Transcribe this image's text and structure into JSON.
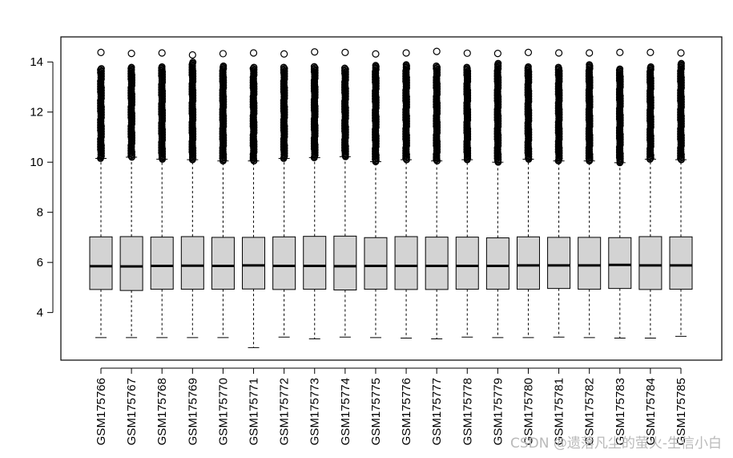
{
  "chart_data": {
    "type": "box",
    "categories": [
      "GSM175766",
      "GSM175767",
      "GSM175768",
      "GSM175769",
      "GSM175770",
      "GSM175771",
      "GSM175772",
      "GSM175773",
      "GSM175774",
      "GSM175775",
      "GSM175776",
      "GSM175777",
      "GSM175778",
      "GSM175779",
      "GSM175780",
      "GSM175781",
      "GSM175782",
      "GSM175783",
      "GSM175784",
      "GSM175785"
    ],
    "ylim": [
      2.1,
      15.0
    ],
    "yticks": [
      4,
      6,
      8,
      10,
      12,
      14
    ],
    "box_fill": "#d3d3d3",
    "boxes": [
      {
        "min": 3.0,
        "q1": 4.92,
        "median": 5.85,
        "q3": 7.02,
        "max": 10.15,
        "outlier_band": [
          10.15,
          13.75
        ],
        "top_outlier": 14.38
      },
      {
        "min": 3.0,
        "q1": 4.88,
        "median": 5.84,
        "q3": 7.03,
        "max": 10.2,
        "outlier_band": [
          10.2,
          13.8
        ],
        "top_outlier": 14.34
      },
      {
        "min": 3.0,
        "q1": 4.93,
        "median": 5.86,
        "q3": 7.01,
        "max": 10.12,
        "outlier_band": [
          10.12,
          13.82
        ],
        "top_outlier": 14.36
      },
      {
        "min": 3.0,
        "q1": 4.93,
        "median": 5.87,
        "q3": 7.03,
        "max": 10.1,
        "outlier_band": [
          10.1,
          14.0
        ],
        "top_outlier": 14.28
      },
      {
        "min": 3.0,
        "q1": 4.93,
        "median": 5.86,
        "q3": 7.0,
        "max": 10.05,
        "outlier_band": [
          10.05,
          13.85
        ],
        "top_outlier": 14.33
      },
      {
        "min": 2.6,
        "q1": 4.94,
        "median": 5.88,
        "q3": 7.0,
        "max": 10.05,
        "outlier_band": [
          10.05,
          13.8
        ],
        "top_outlier": 14.36
      },
      {
        "min": 3.02,
        "q1": 4.92,
        "median": 5.86,
        "q3": 7.02,
        "max": 10.15,
        "outlier_band": [
          10.15,
          13.82
        ],
        "top_outlier": 14.32
      },
      {
        "min": 2.95,
        "q1": 4.93,
        "median": 5.86,
        "q3": 7.04,
        "max": 10.18,
        "outlier_band": [
          10.18,
          13.85
        ],
        "top_outlier": 14.4
      },
      {
        "min": 3.02,
        "q1": 4.9,
        "median": 5.85,
        "q3": 7.05,
        "max": 10.22,
        "outlier_band": [
          10.22,
          13.8
        ],
        "top_outlier": 14.38
      },
      {
        "min": 3.0,
        "q1": 4.93,
        "median": 5.86,
        "q3": 6.99,
        "max": 10.02,
        "outlier_band": [
          10.02,
          13.9
        ],
        "top_outlier": 14.32
      },
      {
        "min": 2.98,
        "q1": 4.92,
        "median": 5.86,
        "q3": 7.03,
        "max": 10.1,
        "outlier_band": [
          10.1,
          13.9
        ],
        "top_outlier": 14.36
      },
      {
        "min": 2.95,
        "q1": 4.92,
        "median": 5.86,
        "q3": 7.01,
        "max": 10.05,
        "outlier_band": [
          10.05,
          13.85
        ],
        "top_outlier": 14.42
      },
      {
        "min": 3.02,
        "q1": 4.93,
        "median": 5.86,
        "q3": 7.01,
        "max": 10.1,
        "outlier_band": [
          10.1,
          13.82
        ],
        "top_outlier": 14.35
      },
      {
        "min": 3.0,
        "q1": 4.93,
        "median": 5.86,
        "q3": 6.98,
        "max": 10.0,
        "outlier_band": [
          10.0,
          13.95
        ],
        "top_outlier": 14.34
      },
      {
        "min": 3.0,
        "q1": 4.93,
        "median": 5.88,
        "q3": 7.02,
        "max": 10.12,
        "outlier_band": [
          10.12,
          13.85
        ],
        "top_outlier": 14.38
      },
      {
        "min": 3.02,
        "q1": 4.96,
        "median": 5.88,
        "q3": 7.0,
        "max": 10.05,
        "outlier_band": [
          10.05,
          13.8
        ],
        "top_outlier": 14.36
      },
      {
        "min": 3.0,
        "q1": 4.93,
        "median": 5.88,
        "q3": 7.0,
        "max": 10.05,
        "outlier_band": [
          10.05,
          13.9
        ],
        "top_outlier": 14.36
      },
      {
        "min": 2.98,
        "q1": 4.96,
        "median": 5.9,
        "q3": 6.99,
        "max": 9.98,
        "outlier_band": [
          9.98,
          13.75
        ],
        "top_outlier": 14.38
      },
      {
        "min": 2.98,
        "q1": 4.92,
        "median": 5.88,
        "q3": 7.03,
        "max": 10.12,
        "outlier_band": [
          10.12,
          13.85
        ],
        "top_outlier": 14.38
      },
      {
        "min": 3.05,
        "q1": 4.93,
        "median": 5.88,
        "q3": 7.02,
        "max": 10.1,
        "outlier_band": [
          10.1,
          13.95
        ],
        "top_outlier": 14.36
      }
    ]
  },
  "watermark": "CSDN @遗落凡尘的萤火-生信小白"
}
